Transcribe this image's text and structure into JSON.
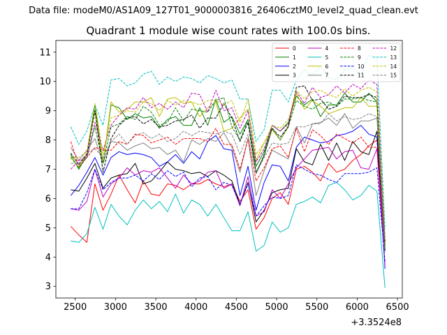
{
  "header": {
    "data_file": "Data file: modeM0/AS1A09_127T01_9000003816_26406cztM0_level2_quad_clean.evt",
    "title": "Quadrant 1 module wise count rates with 100.0s bins."
  },
  "chart_data": {
    "type": "line",
    "x_offset_label": "+3.3524e8",
    "xlim": [
      2260,
      6560
    ],
    "ylim": [
      2.6,
      11.4
    ],
    "x_ticks": [
      2500,
      3000,
      3500,
      4000,
      4500,
      5000,
      5500,
      6000,
      6500
    ],
    "x_tick_labels": [
      "2500",
      "3000",
      "3500",
      "4000",
      "4500",
      "5000",
      "5500",
      "6000",
      "6500"
    ],
    "y_ticks": [
      3,
      4,
      5,
      6,
      7,
      8,
      9,
      10,
      11
    ],
    "y_tick_labels": [
      "3",
      "4",
      "5",
      "6",
      "7",
      "8",
      "9",
      "10",
      "11"
    ],
    "grid": false,
    "legend_position": "top-right",
    "x": [
      2445,
      2545,
      2645,
      2745,
      2845,
      2945,
      3045,
      3145,
      3245,
      3345,
      3445,
      3545,
      3645,
      3745,
      3845,
      3945,
      4045,
      4145,
      4245,
      4345,
      4445,
      4545,
      4645,
      4745,
      4845,
      4945,
      5045,
      5145,
      5245,
      5345,
      5445,
      5545,
      5645,
      5745,
      5845,
      5945,
      6045,
      6145,
      6245,
      6345
    ],
    "series": [
      {
        "name": "0",
        "color": "#ff0000",
        "dash": "solid",
        "values": [
          5.05,
          4.75,
          4.5,
          6.5,
          5.6,
          6.15,
          6.8,
          6.3,
          5.85,
          6.6,
          6.15,
          6.1,
          6.5,
          6.45,
          6.3,
          6.5,
          6.5,
          6.65,
          6.5,
          6.4,
          6.5,
          5.9,
          6.3,
          4.95,
          5.35,
          6.0,
          6.2,
          5.8,
          7.0,
          7.1,
          6.9,
          6.6,
          7.2,
          6.9,
          7.0,
          7.3,
          7.5,
          7.8,
          8.0,
          4.5
        ]
      },
      {
        "name": "1",
        "color": "#008000",
        "dash": "solid",
        "values": [
          7.5,
          7.0,
          7.5,
          9.2,
          7.2,
          9.2,
          9.1,
          8.7,
          8.9,
          8.75,
          8.8,
          8.4,
          8.7,
          8.8,
          8.5,
          8.5,
          9.1,
          8.5,
          9.4,
          8.6,
          8.8,
          8.2,
          8.7,
          7.1,
          7.6,
          8.5,
          8.3,
          8.6,
          9.5,
          9.2,
          9.4,
          8.8,
          9.2,
          9.2,
          9.6,
          9.3,
          9.3,
          9.6,
          9.3,
          4.5
        ]
      },
      {
        "name": "2",
        "color": "#0000ff",
        "dash": "solid",
        "values": [
          6.1,
          6.45,
          6.9,
          7.4,
          6.8,
          7.4,
          7.6,
          7.5,
          7.55,
          7.5,
          7.4,
          7.1,
          7.25,
          7.5,
          7.2,
          7.6,
          7.35,
          7.95,
          8.15,
          7.7,
          7.65,
          6.1,
          7.1,
          5.6,
          6.55,
          7.15,
          7.1,
          6.6,
          7.75,
          8.1,
          8.0,
          7.9,
          7.95,
          8.15,
          8.2,
          8.3,
          8.5,
          8.2,
          8.1,
          3.6
        ]
      },
      {
        "name": "3",
        "color": "#000000",
        "dash": "solid",
        "values": [
          6.3,
          6.25,
          6.7,
          7.2,
          6.35,
          6.7,
          6.8,
          6.85,
          7.2,
          6.5,
          6.6,
          6.9,
          7.25,
          7.0,
          6.95,
          6.85,
          6.9,
          6.75,
          6.95,
          6.8,
          6.6,
          5.8,
          6.55,
          5.2,
          5.6,
          6.2,
          6.3,
          6.35,
          7.7,
          7.25,
          7.15,
          7.85,
          7.3,
          7.9,
          7.3,
          7.95,
          7.6,
          7.5,
          8.3,
          4.2
        ]
      },
      {
        "name": "4",
        "color": "#bf00bf",
        "dash": "solid",
        "values": [
          5.65,
          5.6,
          5.9,
          7.0,
          6.05,
          6.5,
          6.7,
          7.05,
          6.8,
          6.95,
          6.9,
          7.05,
          6.7,
          6.35,
          6.8,
          6.5,
          6.6,
          6.9,
          6.95,
          6.35,
          6.5,
          5.75,
          6.75,
          5.4,
          5.55,
          6.3,
          6.0,
          6.5,
          7.05,
          7.35,
          7.65,
          7.7,
          7.75,
          7.35,
          7.6,
          7.65,
          7.05,
          7.0,
          7.7,
          3.7
        ]
      },
      {
        "name": "5",
        "color": "#00bfbf",
        "dash": "solid",
        "values": [
          4.55,
          4.5,
          4.8,
          5.7,
          4.95,
          5.8,
          5.4,
          5.1,
          5.6,
          5.95,
          5.65,
          5.9,
          5.55,
          6.15,
          5.5,
          5.95,
          5.8,
          5.4,
          5.8,
          5.35,
          4.9,
          4.9,
          5.55,
          4.2,
          4.4,
          5.2,
          4.85,
          5.0,
          5.8,
          5.9,
          6.05,
          5.85,
          6.45,
          6.55,
          6.3,
          5.95,
          6.1,
          6.45,
          6.25,
          2.95
        ]
      },
      {
        "name": "6",
        "color": "#bfbf00",
        "dash": "solid",
        "values": [
          7.45,
          7.05,
          7.5,
          9.0,
          7.2,
          9.3,
          8.95,
          9.05,
          9.3,
          9.3,
          9.45,
          8.8,
          9.4,
          9.45,
          9.25,
          9.3,
          8.8,
          9.1,
          9.3,
          8.3,
          8.4,
          8.75,
          9.05,
          7.3,
          7.9,
          8.35,
          8.0,
          8.5,
          9.6,
          9.05,
          9.35,
          9.15,
          8.9,
          9.0,
          9.1,
          9.1,
          9.45,
          9.15,
          9.15,
          4.4
        ]
      },
      {
        "name": "7",
        "color": "#808080",
        "dash": "solid",
        "values": [
          7.75,
          7.3,
          7.65,
          8.05,
          7.2,
          7.95,
          7.9,
          7.65,
          7.8,
          7.9,
          7.7,
          7.75,
          7.5,
          7.65,
          7.25,
          8.0,
          7.85,
          8.05,
          7.95,
          8.25,
          7.75,
          6.9,
          8.05,
          6.1,
          6.95,
          7.65,
          7.5,
          7.35,
          8.45,
          7.9,
          8.55,
          8.6,
          8.75,
          8.5,
          8.9,
          8.4,
          8.65,
          8.65,
          8.75,
          4.3
        ]
      },
      {
        "name": "8",
        "color": "#ff0000",
        "dash": "dashed",
        "values": [
          7.95,
          7.1,
          7.4,
          7.75,
          7.65,
          7.65,
          7.95,
          7.85,
          8.2,
          8.15,
          7.9,
          8.0,
          8.1,
          7.85,
          8.05,
          8.05,
          8.05,
          7.95,
          8.4,
          7.85,
          7.85,
          7.0,
          8.05,
          6.6,
          7.05,
          7.7,
          7.8,
          7.4,
          8.4,
          7.6,
          8.35,
          8.15,
          7.85,
          8.2,
          8.05,
          7.9,
          8.1,
          7.75,
          7.75,
          4.4
        ]
      },
      {
        "name": "9",
        "color": "#008000",
        "dash": "dashed",
        "values": [
          7.4,
          7.05,
          7.4,
          8.45,
          7.2,
          8.45,
          8.55,
          8.8,
          8.7,
          9.15,
          8.95,
          8.5,
          8.6,
          9.1,
          8.65,
          9.05,
          9.0,
          8.95,
          9.35,
          9.45,
          8.45,
          8.0,
          8.7,
          6.9,
          7.45,
          8.4,
          8.0,
          8.45,
          9.35,
          9.15,
          9.05,
          9.25,
          9.3,
          9.15,
          9.4,
          9.4,
          9.45,
          9.35,
          9.3,
          4.3
        ]
      },
      {
        "name": "10",
        "color": "#0000ff",
        "dash": "dashed",
        "values": [
          5.65,
          5.65,
          6.2,
          7.0,
          6.3,
          6.55,
          6.7,
          6.7,
          6.8,
          6.6,
          6.85,
          6.65,
          6.95,
          6.75,
          6.9,
          6.4,
          6.7,
          6.75,
          6.3,
          6.55,
          6.45,
          5.8,
          6.5,
          5.4,
          5.75,
          6.05,
          6.0,
          6.1,
          7.15,
          7.0,
          6.85,
          6.8,
          6.65,
          6.55,
          6.85,
          6.85,
          6.85,
          6.9,
          7.05,
          3.85
        ]
      },
      {
        "name": "11",
        "color": "#000000",
        "dash": "dashed",
        "values": [
          7.55,
          7.15,
          7.5,
          9.0,
          6.9,
          8.05,
          8.5,
          8.75,
          8.8,
          8.55,
          8.7,
          8.45,
          8.5,
          8.65,
          8.7,
          8.85,
          8.4,
          8.75,
          8.75,
          9.25,
          8.75,
          7.95,
          8.6,
          6.85,
          7.5,
          8.4,
          8.1,
          8.45,
          9.8,
          9.85,
          9.35,
          9.4,
          9.05,
          9.15,
          9.5,
          9.45,
          9.45,
          9.55,
          9.45,
          4.55
        ]
      },
      {
        "name": "12",
        "color": "#bf00bf",
        "dash": "dashed",
        "values": [
          7.0,
          7.3,
          7.4,
          8.6,
          7.65,
          8.5,
          8.85,
          9.1,
          9.05,
          9.45,
          9.1,
          9.25,
          9.05,
          9.3,
          9.1,
          9.6,
          9.55,
          8.95,
          9.7,
          9.0,
          9.1,
          8.4,
          9.0,
          7.25,
          7.7,
          8.5,
          8.3,
          8.55,
          9.65,
          9.25,
          9.8,
          9.45,
          9.55,
          9.85,
          9.6,
          9.9,
          9.75,
          10.05,
          9.9,
          4.65
        ]
      },
      {
        "name": "13",
        "color": "#00bfbf",
        "dash": "dashed",
        "values": [
          8.45,
          7.85,
          8.3,
          9.2,
          8.5,
          10.05,
          10.1,
          9.85,
          9.95,
          10.25,
          10.35,
          9.9,
          10.15,
          10.0,
          10.15,
          10.1,
          9.95,
          10.2,
          10.1,
          9.95,
          10.05,
          9.4,
          9.4,
          7.95,
          8.35,
          9.7,
          9.7,
          9.3,
          10.05,
          10.4,
          10.2,
          10.5,
          10.15,
          10.05,
          10.4,
          10.45,
          10.2,
          10.9,
          10.8,
          4.95
        ]
      },
      {
        "name": "14",
        "color": "#bfbf00",
        "dash": "dashed",
        "values": [
          7.35,
          7.4,
          7.6,
          9.25,
          7.5,
          8.75,
          8.85,
          9.0,
          8.95,
          9.3,
          9.25,
          9.0,
          9.35,
          9.2,
          9.35,
          9.3,
          9.2,
          9.35,
          9.35,
          9.2,
          9.35,
          8.6,
          9.4,
          7.5,
          7.9,
          8.5,
          8.4,
          8.7,
          9.7,
          9.4,
          9.65,
          9.7,
          9.55,
          9.45,
          9.75,
          9.5,
          9.7,
          9.8,
          9.65,
          4.6
        ]
      },
      {
        "name": "15",
        "color": "#808080",
        "dash": "dashed",
        "values": [
          7.2,
          7.2,
          7.55,
          7.7,
          7.4,
          7.95,
          8.2,
          7.85,
          8.15,
          8.25,
          8.05,
          8.2,
          7.95,
          8.05,
          8.3,
          8.15,
          8.3,
          8.25,
          8.2,
          8.3,
          8.2,
          7.5,
          8.2,
          6.85,
          7.4,
          7.9,
          7.85,
          7.9,
          8.45,
          8.45,
          8.55,
          8.55,
          8.9,
          8.65,
          8.8,
          8.7,
          8.75,
          8.9,
          8.8,
          4.6
        ]
      }
    ]
  }
}
